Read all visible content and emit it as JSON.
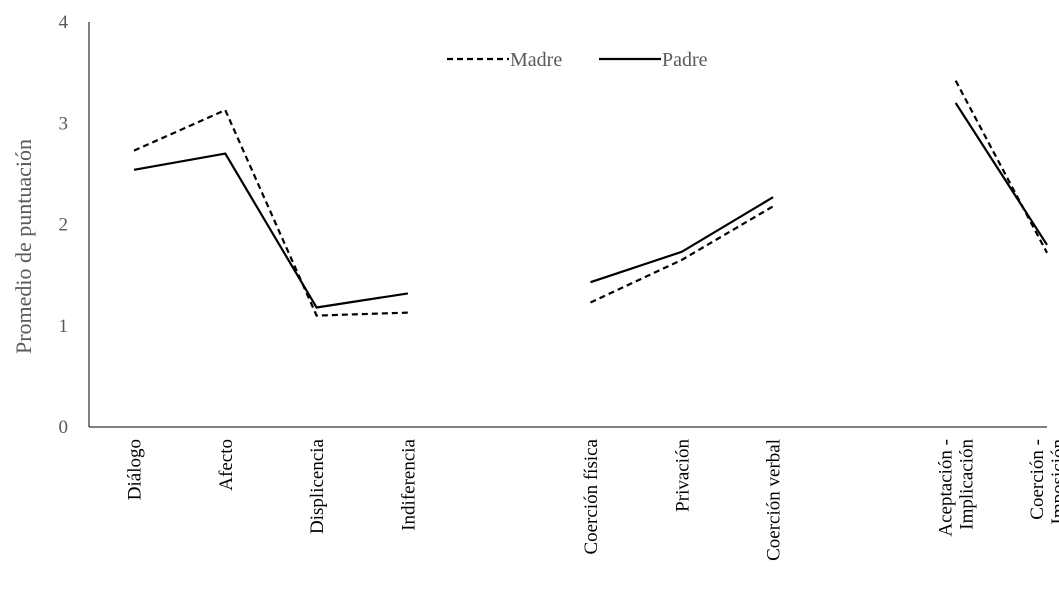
{
  "chart_data": {
    "type": "line",
    "title": "",
    "xlabel": "",
    "ylabel": "Promedio de puntuación",
    "ylim": [
      0,
      4
    ],
    "yticks": [
      0,
      1,
      2,
      3,
      4
    ],
    "grid": false,
    "legend_position": "top-center",
    "categories": [
      [
        "Diálogo"
      ],
      [
        "Afecto"
      ],
      [
        "Displicencia"
      ],
      [
        "Indiferencia"
      ],
      [],
      [
        "Coerción física"
      ],
      [
        "Privación"
      ],
      [
        "Coerción verbal"
      ],
      [],
      [
        "Aceptación -",
        "Implicación"
      ],
      [
        "Coerción -",
        "Imposición"
      ]
    ],
    "series": [
      {
        "name": "Madre",
        "style": "dashed",
        "color": "#000000",
        "values": [
          2.73,
          3.13,
          1.1,
          1.13,
          null,
          1.23,
          1.65,
          2.18,
          null,
          3.42,
          1.72
        ]
      },
      {
        "name": "Padre",
        "style": "solid",
        "color": "#000000",
        "values": [
          2.54,
          2.7,
          1.18,
          1.32,
          null,
          1.43,
          1.73,
          2.27,
          null,
          3.2,
          1.8
        ]
      }
    ]
  }
}
